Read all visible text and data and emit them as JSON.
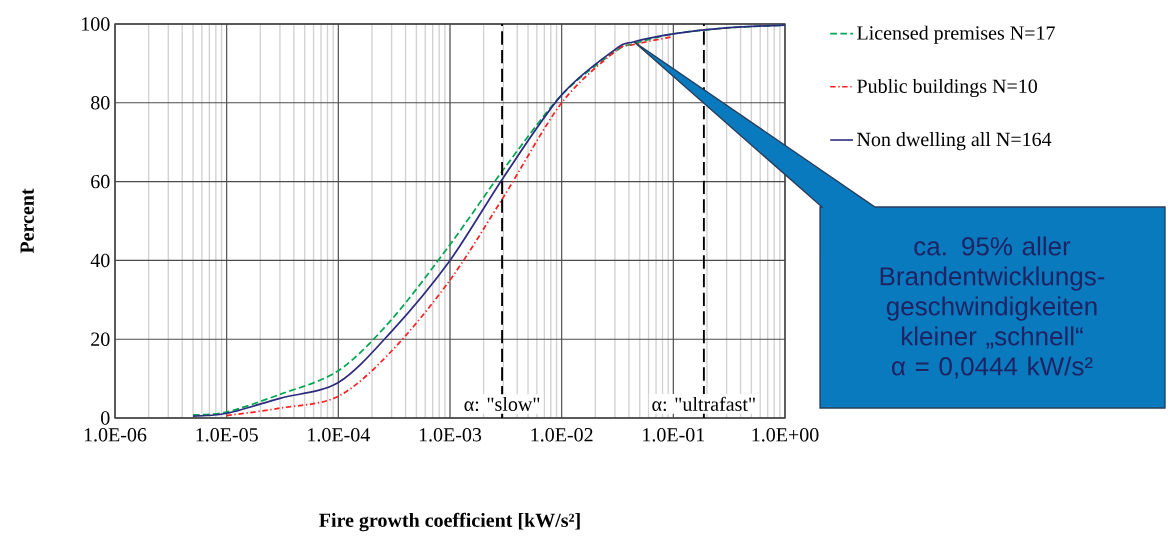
{
  "chart_data": {
    "type": "line",
    "xlabel": "Fire growth coefficient [kW/s²]",
    "ylabel": "Percent",
    "x": [
      5e-06,
      1e-05,
      3e-05,
      0.0001,
      0.0003,
      0.001,
      0.003,
      0.01,
      0.03,
      0.0444,
      0.1,
      0.3,
      1
    ],
    "series": [
      {
        "name": "Licensed premises N=17",
        "color": "#00a651",
        "line_style": "dashed",
        "values": [
          0.8,
          1.5,
          6,
          12,
          25,
          44,
          63,
          82,
          93,
          95,
          97.5,
          99,
          99.7
        ]
      },
      {
        "name": "Public buildings N=10",
        "color": "#ff2020",
        "line_style": "dashdot",
        "values": [
          null,
          0.6,
          2.5,
          5.5,
          17,
          35,
          56,
          80,
          93,
          94.8,
          96.8,
          null,
          null
        ]
      },
      {
        "name": "Non dwelling all N=164",
        "color": "#2b2b80",
        "line_style": "solid",
        "values": [
          0.5,
          1.2,
          5,
          9,
          22,
          40,
          61,
          82,
          93.5,
          95.5,
          97.5,
          99,
          99.7
        ]
      }
    ],
    "xlim": [
      1e-06,
      1
    ],
    "ylim": [
      0,
      100
    ],
    "log": "x",
    "xticks": [
      {
        "value": 1e-06,
        "label": "1.0E-06"
      },
      {
        "value": 1e-05,
        "label": "1.0E-05"
      },
      {
        "value": 0.0001,
        "label": "1.0E-04"
      },
      {
        "value": 0.001,
        "label": "1.0E-03"
      },
      {
        "value": 0.01,
        "label": "1.0E-02"
      },
      {
        "value": 0.1,
        "label": "1.0E-01"
      },
      {
        "value": 1,
        "label": "1.0E+00"
      }
    ],
    "yticks": [
      0,
      20,
      40,
      60,
      80,
      100
    ],
    "ref_lines": [
      {
        "axis": "x",
        "value": 0.00293,
        "label": "α: \"slow\"",
        "color": "#000000",
        "line_style": "dashed"
      },
      {
        "axis": "x",
        "value": 0.1876,
        "label": "α: \"ultrafast\"",
        "color": "#000000",
        "line_style": "dashed"
      }
    ],
    "annotations": [
      "ca. 95% aller Brandentwicklungs-geschwindigkeiten kleiner „schnell“",
      "α = 0,0444 kW/s²"
    ],
    "grid": true,
    "legend": "right"
  }
}
